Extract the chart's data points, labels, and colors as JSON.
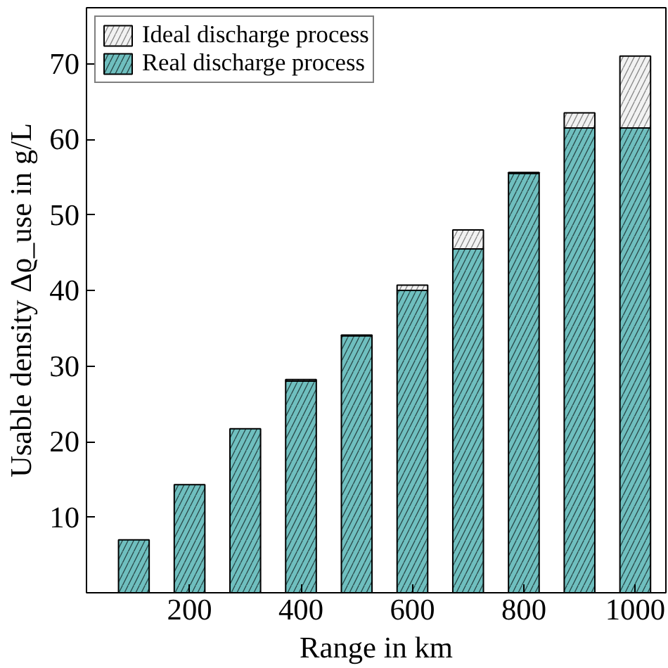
{
  "chart_data": {
    "type": "bar",
    "stacked": true,
    "xlabel": "Range in km",
    "ylabel": "Usable density Δϱ_use in g/L",
    "x": [
      100,
      200,
      300,
      400,
      500,
      600,
      700,
      800,
      900,
      1000
    ],
    "series": [
      {
        "name": "Real discharge process",
        "color": "#6fbfbf",
        "values": [
          7,
          14.3,
          21.7,
          28,
          34,
          40,
          45.5,
          55.5,
          61.5,
          61.5
        ]
      },
      {
        "name": "Ideal discharge process",
        "color": "#f2f2f2",
        "values": [
          0,
          0,
          0,
          0.2,
          0.1,
          0.7,
          2.5,
          0.1,
          2,
          9.5
        ]
      }
    ],
    "xlim": [
      15,
      1055
    ],
    "ylim": [
      0,
      77.4
    ],
    "xticks": [
      200,
      400,
      600,
      800,
      1000
    ],
    "yticks": [
      10,
      20,
      30,
      40,
      50,
      60,
      70
    ],
    "grid": false,
    "legend": "top left"
  }
}
